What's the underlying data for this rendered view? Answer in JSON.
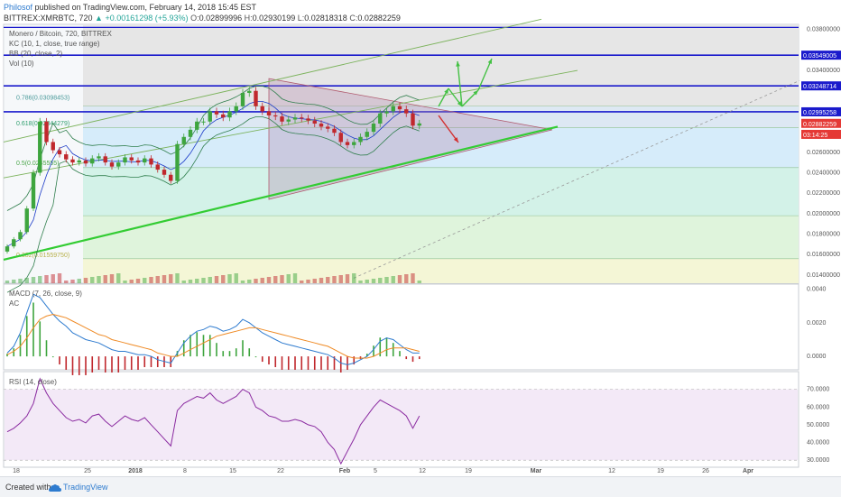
{
  "header": {
    "author": "Philosof",
    "published": "published on TradingView.com, February 14, 2018 15:45 EST",
    "symbol": "BITTREX:XMRBTC, 720",
    "change": "+0.00161298 (+5.93%)",
    "o_label": "O:",
    "o": "0.02899996",
    "h_label": "H:",
    "h": "0.02930199",
    "l_label": "L:",
    "l": "0.02818318",
    "c_label": "C:",
    "c": "0.02882259"
  },
  "indicators": {
    "main": "Monero / Bitcoin, 720, BITTREX",
    "kc": "KC (10, 1, close, true range)",
    "bb": "BB (20, close, 2)",
    "vol": "Vol (10)",
    "macd": "MACD (7, 26, close, 9)",
    "ac": "AC",
    "rsi": "RSI (14, close)"
  },
  "chart_data": {
    "type": "candlestick",
    "x_ticks": [
      "18",
      "25",
      "2018",
      "8",
      "15",
      "22",
      "Feb",
      "5",
      "12",
      "19",
      "Mar",
      "12",
      "19",
      "26",
      "Apr"
    ],
    "price_axis": {
      "ticks": [
        "0.03800000",
        "0.03400000",
        "0.02600000",
        "0.02400000",
        "0.02200000",
        "0.02000000",
        "0.01800000",
        "0.01600000",
        "0.01400000"
      ],
      "tick_values": [
        0.038,
        0.034,
        0.026,
        0.024,
        0.022,
        0.02,
        0.018,
        0.016,
        0.014
      ],
      "ylim": [
        0.0132,
        0.0385
      ]
    },
    "price_markers": [
      {
        "label": "0.03549005",
        "value": 0.03549,
        "color": "#1a1acc"
      },
      {
        "label": "0.03248714",
        "value": 0.032487,
        "color": "#1a1acc"
      },
      {
        "label": "0.02995258",
        "value": 0.029953,
        "color": "#1a1acc"
      },
      {
        "label": "0.02882259",
        "value": 0.028823,
        "color": "#e53935"
      },
      {
        "label": "03:14:25",
        "value": 0.02775,
        "color": "#e53935"
      }
    ],
    "fib_levels": [
      {
        "label": "0.786(0.03098453)",
        "value": 0.03098
      },
      {
        "label": "0.618(0.02844279)",
        "value": 0.02844
      },
      {
        "label": "0.5(0.0245555)",
        "value": 0.02456
      },
      {
        "label": "0.382(0.01559750)",
        "value": 0.0156
      }
    ],
    "candles": {
      "x": [
        "Dec 13",
        "Dec 14",
        "Dec 15",
        "Dec 16",
        "Dec 17",
        "Dec 18",
        "Dec 19",
        "Dec 20",
        "Dec 21",
        "Dec 22",
        "Dec 23",
        "Dec 24",
        "Dec 25",
        "Dec 26",
        "Dec 27",
        "Dec 28",
        "Dec 29",
        "Dec 30",
        "Dec 31",
        "Jan 1",
        "Jan 2",
        "Jan 3",
        "Jan 4",
        "Jan 5",
        "Jan 6",
        "Jan 7",
        "Jan 8",
        "Jan 9",
        "Jan 10",
        "Jan 11",
        "Jan 12",
        "Jan 13",
        "Jan 14",
        "Jan 15",
        "Jan 16",
        "Jan 17",
        "Jan 18",
        "Jan 19",
        "Jan 20",
        "Jan 21",
        "Jan 22",
        "Jan 23",
        "Jan 24",
        "Jan 25",
        "Jan 26",
        "Jan 27",
        "Jan 28",
        "Jan 29",
        "Jan 30",
        "Jan 31",
        "Feb 1",
        "Feb 2",
        "Feb 3",
        "Feb 4",
        "Feb 5",
        "Feb 6",
        "Feb 7",
        "Feb 8",
        "Feb 9",
        "Feb 10",
        "Feb 11",
        "Feb 12",
        "Feb 13",
        "Feb 14"
      ],
      "close": [
        0.0168,
        0.0175,
        0.0182,
        0.0205,
        0.024,
        0.029,
        0.027,
        0.0262,
        0.0258,
        0.0253,
        0.025,
        0.0252,
        0.0249,
        0.0254,
        0.0256,
        0.025,
        0.0246,
        0.025,
        0.0255,
        0.0252,
        0.025,
        0.0254,
        0.0248,
        0.0243,
        0.0238,
        0.0232,
        0.0268,
        0.0275,
        0.0282,
        0.029,
        0.029,
        0.03,
        0.0297,
        0.0294,
        0.03,
        0.0305,
        0.0318,
        0.032,
        0.0305,
        0.03,
        0.0296,
        0.0295,
        0.029,
        0.0292,
        0.0294,
        0.0293,
        0.0291,
        0.0288,
        0.0285,
        0.0283,
        0.0279,
        0.027,
        0.0267,
        0.027,
        0.0275,
        0.028,
        0.0288,
        0.0298,
        0.03,
        0.0305,
        0.0302,
        0.0298,
        0.0286,
        0.02882
      ]
    },
    "macd_axis": {
      "ticks": [
        "0.0040",
        "0.0020",
        "0.0000"
      ],
      "tick_values": [
        0.004,
        0.002,
        0.0
      ],
      "ylim": [
        -0.0008,
        0.0043
      ]
    },
    "macd": {
      "macd": [
        0.0002,
        0.0006,
        0.0014,
        0.0026,
        0.0037,
        0.0035,
        0.003,
        0.0025,
        0.0021,
        0.0018,
        0.0014,
        0.0012,
        0.001,
        0.0009,
        0.0008,
        0.0006,
        0.0004,
        0.0003,
        0.0003,
        0.0002,
        0.0001,
        0.0001,
        0.0,
        -0.0002,
        -0.0003,
        -0.0004,
        0.0002,
        0.0008,
        0.0012,
        0.0015,
        0.0016,
        0.0018,
        0.0017,
        0.0015,
        0.0016,
        0.0018,
        0.0022,
        0.002,
        0.0017,
        0.0014,
        0.0012,
        0.001,
        0.0008,
        0.0007,
        0.0006,
        0.0005,
        0.0004,
        0.0003,
        0.0002,
        0.0001,
        -0.0001,
        -0.0004,
        -0.0005,
        -0.0004,
        -0.0002,
        0.0,
        0.0004,
        0.0009,
        0.0011,
        0.001,
        0.0007,
        0.0004,
        0.0002,
        0.0002
      ],
      "signal": [
        0.0001,
        0.0003,
        0.0006,
        0.0011,
        0.0017,
        0.0022,
        0.0024,
        0.0025,
        0.0024,
        0.0023,
        0.0021,
        0.0019,
        0.0017,
        0.0015,
        0.0013,
        0.0012,
        0.001,
        0.0009,
        0.0008,
        0.0007,
        0.0006,
        0.0005,
        0.0004,
        0.0002,
        0.0001,
        0.0,
        0.0,
        0.0002,
        0.0004,
        0.0006,
        0.0008,
        0.001,
        0.0012,
        0.0013,
        0.0014,
        0.0015,
        0.0016,
        0.0017,
        0.0017,
        0.0016,
        0.0015,
        0.0014,
        0.0013,
        0.0012,
        0.0011,
        0.001,
        0.0009,
        0.0008,
        0.0007,
        0.0006,
        0.0004,
        0.0002,
        0.0,
        -0.0001,
        -0.0001,
        -0.0001,
        0.0,
        0.0002,
        0.0004,
        0.0005,
        0.0005,
        0.0005,
        0.0004,
        0.0003
      ]
    },
    "rsi_axis": {
      "ticks": [
        "70.0000",
        "60.0000",
        "50.0000",
        "40.0000",
        "30.0000"
      ],
      "tick_values": [
        70,
        60,
        50,
        40,
        30
      ],
      "ylim": [
        26,
        80
      ]
    },
    "rsi": [
      46,
      48,
      51,
      55,
      62,
      76,
      68,
      62,
      58,
      54,
      52,
      53,
      51,
      55,
      56,
      52,
      49,
      52,
      55,
      53,
      52,
      54,
      50,
      46,
      42,
      38,
      58,
      62,
      64,
      66,
      65,
      68,
      64,
      62,
      64,
      66,
      70,
      68,
      60,
      58,
      55,
      54,
      52,
      52,
      53,
      52,
      50,
      49,
      46,
      40,
      36,
      28,
      35,
      42,
      50,
      55,
      60,
      64,
      62,
      60,
      58,
      55,
      48,
      55
    ]
  }
}
